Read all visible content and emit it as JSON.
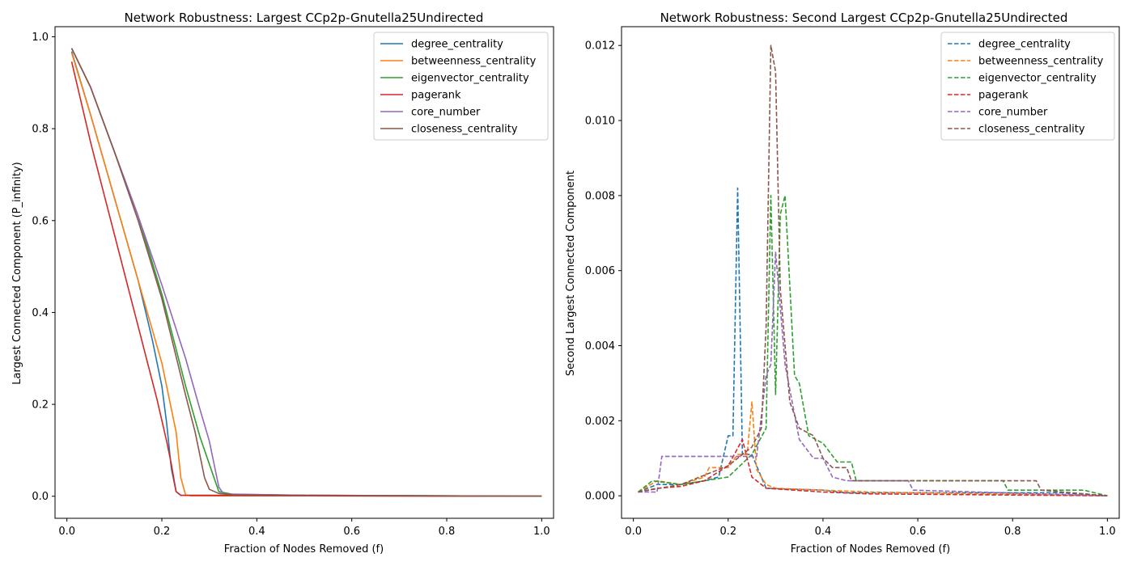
{
  "chart_data": [
    {
      "type": "line",
      "title": "Network Robustness: Largest CCp2p-Gnutella25Undirected",
      "xlabel": "Fraction of Nodes Removed (f)",
      "ylabel": "Largest Connected Component (P_infinity)",
      "xlim": [
        -0.025,
        1.025
      ],
      "ylim": [
        -0.048,
        1.022
      ],
      "xticks": [
        "0.0",
        "0.2",
        "0.4",
        "0.6",
        "0.8",
        "1.0"
      ],
      "yticks": [
        "0.0",
        "0.2",
        "0.4",
        "0.6",
        "0.8",
        "1.0"
      ],
      "legend_position": "upper right",
      "line_style": "solid",
      "series": [
        {
          "name": "degree_centrality",
          "color": "#1f77b4",
          "points": [
            [
              0.01,
              0.968
            ],
            [
              0.05,
              0.83
            ],
            [
              0.1,
              0.65
            ],
            [
              0.15,
              0.47
            ],
            [
              0.18,
              0.34
            ],
            [
              0.2,
              0.24
            ],
            [
              0.21,
              0.16
            ],
            [
              0.22,
              0.06
            ],
            [
              0.23,
              0.01
            ],
            [
              0.24,
              0.002
            ],
            [
              0.3,
              0.002
            ],
            [
              0.5,
              0.001
            ],
            [
              1.0,
              0.0
            ]
          ]
        },
        {
          "name": "betweenness_centrality",
          "color": "#ff7f0e",
          "points": [
            [
              0.01,
              0.965
            ],
            [
              0.05,
              0.83
            ],
            [
              0.1,
              0.65
            ],
            [
              0.15,
              0.47
            ],
            [
              0.2,
              0.29
            ],
            [
              0.22,
              0.19
            ],
            [
              0.23,
              0.14
            ],
            [
              0.24,
              0.04
            ],
            [
              0.25,
              0.003
            ],
            [
              0.26,
              0.001
            ],
            [
              0.5,
              0.001
            ],
            [
              1.0,
              0.0
            ]
          ]
        },
        {
          "name": "eigenvector_centrality",
          "color": "#2ca02c",
          "points": [
            [
              0.01,
              0.975
            ],
            [
              0.05,
              0.89
            ],
            [
              0.1,
              0.75
            ],
            [
              0.15,
              0.61
            ],
            [
              0.2,
              0.44
            ],
            [
              0.25,
              0.24
            ],
            [
              0.28,
              0.13
            ],
            [
              0.3,
              0.07
            ],
            [
              0.32,
              0.01
            ],
            [
              0.35,
              0.004
            ],
            [
              0.5,
              0.002
            ],
            [
              1.0,
              0.0
            ]
          ]
        },
        {
          "name": "pagerank",
          "color": "#d62728",
          "points": [
            [
              0.01,
              0.946
            ],
            [
              0.05,
              0.77
            ],
            [
              0.1,
              0.57
            ],
            [
              0.15,
              0.37
            ],
            [
              0.19,
              0.21
            ],
            [
              0.21,
              0.12
            ],
            [
              0.22,
              0.07
            ],
            [
              0.23,
              0.01
            ],
            [
              0.24,
              0.002
            ],
            [
              0.5,
              0.001
            ],
            [
              1.0,
              0.0
            ]
          ]
        },
        {
          "name": "core_number",
          "color": "#9467bd",
          "points": [
            [
              0.01,
              0.975
            ],
            [
              0.05,
              0.89
            ],
            [
              0.1,
              0.75
            ],
            [
              0.15,
              0.61
            ],
            [
              0.2,
              0.46
            ],
            [
              0.25,
              0.3
            ],
            [
              0.28,
              0.19
            ],
            [
              0.3,
              0.12
            ],
            [
              0.32,
              0.02
            ],
            [
              0.33,
              0.005
            ],
            [
              0.5,
              0.002
            ],
            [
              1.0,
              0.0
            ]
          ]
        },
        {
          "name": "closeness_centrality",
          "color": "#8c564b",
          "points": [
            [
              0.01,
              0.975
            ],
            [
              0.05,
              0.89
            ],
            [
              0.1,
              0.75
            ],
            [
              0.15,
              0.6
            ],
            [
              0.2,
              0.43
            ],
            [
              0.25,
              0.22
            ],
            [
              0.27,
              0.14
            ],
            [
              0.29,
              0.04
            ],
            [
              0.3,
              0.015
            ],
            [
              0.32,
              0.006
            ],
            [
              0.35,
              0.003
            ],
            [
              0.5,
              0.002
            ],
            [
              1.0,
              0.0
            ]
          ]
        }
      ]
    },
    {
      "type": "line",
      "title": "Network Robustness: Second Largest CCp2p-Gnutella25Undirected",
      "xlabel": "Fraction of Nodes Removed (f)",
      "ylabel": "Second Largest Connected Component",
      "xlim": [
        -0.025,
        1.025
      ],
      "ylim": [
        -0.0006,
        0.0125
      ],
      "xticks": [
        "0.0",
        "0.2",
        "0.4",
        "0.6",
        "0.8",
        "1.0"
      ],
      "yticks": [
        "0.000",
        "0.002",
        "0.004",
        "0.006",
        "0.008",
        "0.010",
        "0.012"
      ],
      "legend_position": "upper right",
      "line_style": "dashed",
      "series": [
        {
          "name": "degree_centrality",
          "color": "#1f77b4",
          "points": [
            [
              0.01,
              0.0001
            ],
            [
              0.05,
              0.0003
            ],
            [
              0.1,
              0.0003
            ],
            [
              0.15,
              0.0004
            ],
            [
              0.18,
              0.0005
            ],
            [
              0.2,
              0.0016
            ],
            [
              0.21,
              0.0016
            ],
            [
              0.22,
              0.0082
            ],
            [
              0.23,
              0.0011
            ],
            [
              0.24,
              0.0011
            ],
            [
              0.25,
              0.0011
            ],
            [
              0.26,
              0.0008
            ],
            [
              0.28,
              0.0002
            ],
            [
              0.4,
              0.00015
            ],
            [
              0.45,
              8e-05
            ],
            [
              0.7,
              8e-05
            ],
            [
              0.9,
              8e-05
            ],
            [
              1.0,
              0.0
            ]
          ]
        },
        {
          "name": "betweenness_centrality",
          "color": "#ff7f0e",
          "points": [
            [
              0.01,
              0.0001
            ],
            [
              0.05,
              0.0004
            ],
            [
              0.1,
              0.0003
            ],
            [
              0.15,
              0.0005
            ],
            [
              0.16,
              0.00075
            ],
            [
              0.2,
              0.00075
            ],
            [
              0.22,
              0.0011
            ],
            [
              0.24,
              0.0011
            ],
            [
              0.25,
              0.0025
            ],
            [
              0.26,
              0.0007
            ],
            [
              0.28,
              0.0003
            ],
            [
              0.3,
              0.0002
            ],
            [
              0.5,
              0.0001
            ],
            [
              1.0,
              0.0
            ]
          ]
        },
        {
          "name": "eigenvector_centrality",
          "color": "#2ca02c",
          "points": [
            [
              0.01,
              0.0001
            ],
            [
              0.04,
              0.0004
            ],
            [
              0.1,
              0.0003
            ],
            [
              0.15,
              0.0004
            ],
            [
              0.2,
              0.0005
            ],
            [
              0.25,
              0.0011
            ],
            [
              0.28,
              0.0018
            ],
            [
              0.29,
              0.008
            ],
            [
              0.3,
              0.0027
            ],
            [
              0.31,
              0.0075
            ],
            [
              0.32,
              0.008
            ],
            [
              0.34,
              0.0032
            ],
            [
              0.35,
              0.003
            ],
            [
              0.37,
              0.0016
            ],
            [
              0.4,
              0.0014
            ],
            [
              0.43,
              0.0009
            ],
            [
              0.46,
              0.0009
            ],
            [
              0.47,
              0.0004
            ],
            [
              0.7,
              0.0004
            ],
            [
              0.78,
              0.0004
            ],
            [
              0.79,
              0.00015
            ],
            [
              0.95,
              0.00015
            ],
            [
              1.0,
              0.0
            ]
          ]
        },
        {
          "name": "pagerank",
          "color": "#d62728",
          "points": [
            [
              0.01,
              0.0001
            ],
            [
              0.05,
              0.0002
            ],
            [
              0.1,
              0.00025
            ],
            [
              0.15,
              0.0004
            ],
            [
              0.2,
              0.0008
            ],
            [
              0.23,
              0.0015
            ],
            [
              0.25,
              0.0005
            ],
            [
              0.28,
              0.0002
            ],
            [
              0.4,
              0.0001
            ],
            [
              0.5,
              5e-05
            ],
            [
              1.0,
              0.0
            ]
          ]
        },
        {
          "name": "core_number",
          "color": "#9467bd",
          "points": [
            [
              0.01,
              0.0001
            ],
            [
              0.05,
              0.0001
            ],
            [
              0.06,
              0.00105
            ],
            [
              0.2,
              0.00105
            ],
            [
              0.26,
              0.00105
            ],
            [
              0.28,
              0.0032
            ],
            [
              0.29,
              0.0035
            ],
            [
              0.3,
              0.0065
            ],
            [
              0.32,
              0.0035
            ],
            [
              0.35,
              0.0015
            ],
            [
              0.38,
              0.001
            ],
            [
              0.4,
              0.001
            ],
            [
              0.42,
              0.0005
            ],
            [
              0.45,
              0.0004
            ],
            [
              0.58,
              0.0004
            ],
            [
              0.59,
              0.00015
            ],
            [
              1.0,
              0.0
            ]
          ]
        },
        {
          "name": "closeness_centrality",
          "color": "#8c564b",
          "points": [
            [
              0.01,
              0.0001
            ],
            [
              0.1,
              0.0003
            ],
            [
              0.2,
              0.0008
            ],
            [
              0.25,
              0.0013
            ],
            [
              0.27,
              0.0018
            ],
            [
              0.28,
              0.0045
            ],
            [
              0.29,
              0.012
            ],
            [
              0.3,
              0.0113
            ],
            [
              0.31,
              0.0055
            ],
            [
              0.33,
              0.0025
            ],
            [
              0.35,
              0.0018
            ],
            [
              0.38,
              0.0016
            ],
            [
              0.4,
              0.001
            ],
            [
              0.42,
              0.00075
            ],
            [
              0.45,
              0.00075
            ],
            [
              0.46,
              0.0004
            ],
            [
              0.85,
              0.0004
            ],
            [
              0.86,
              0.00015
            ],
            [
              1.0,
              0.0
            ]
          ]
        }
      ]
    }
  ]
}
